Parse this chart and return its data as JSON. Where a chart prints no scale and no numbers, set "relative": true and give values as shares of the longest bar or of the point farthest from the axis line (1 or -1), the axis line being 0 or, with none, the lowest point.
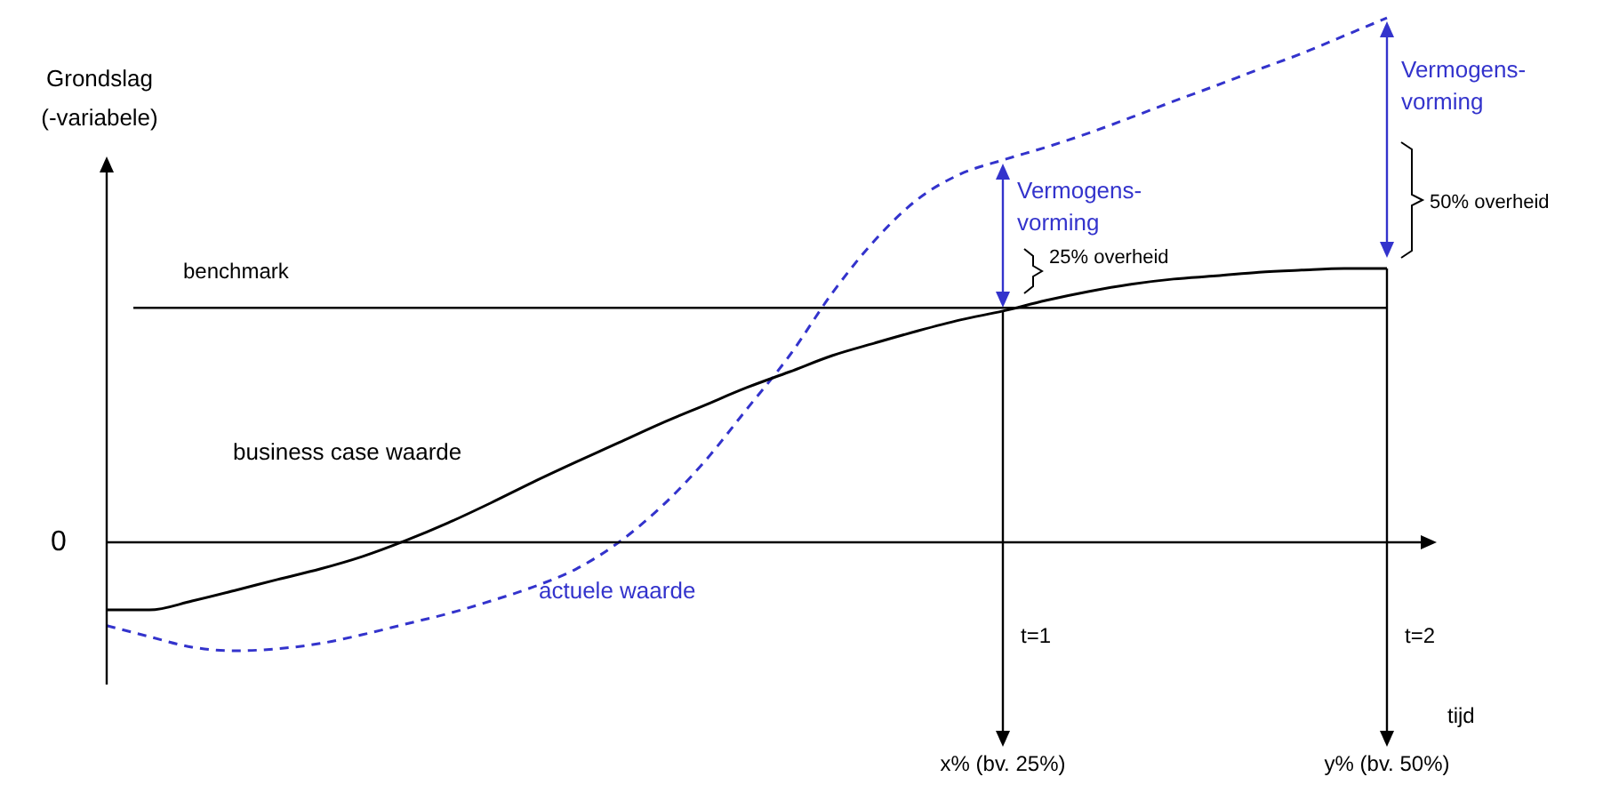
{
  "chart_data": {
    "type": "line",
    "relative": true,
    "ylabel": "Grondslag\n(-variabele)",
    "xlabel": "tijd",
    "legend": false,
    "marker": "none",
    "categories": [
      null,
      null,
      null,
      null,
      null,
      null,
      null,
      null,
      null,
      null,
      null,
      null,
      null,
      null,
      null,
      null,
      null,
      null,
      null,
      null,
      null,
      null,
      null,
      null,
      null,
      null,
      null,
      null,
      null,
      null,
      null
    ],
    "series": [
      {
        "name": "business case waarde",
        "color": "#000000",
        "line_style": "solid",
        "values": [
          -0.129,
          -0.129,
          -0.112,
          -0.092,
          -0.071,
          -0.051,
          -0.027,
          0.003,
          0.037,
          0.075,
          0.115,
          0.153,
          0.19,
          0.227,
          0.261,
          0.295,
          0.325,
          0.356,
          0.38,
          0.403,
          0.424,
          0.441,
          0.461,
          0.478,
          0.492,
          0.502,
          0.508,
          0.515,
          0.519,
          0.522,
          0.522
        ]
      },
      {
        "name": "actuele waarde",
        "color": "#3333cc",
        "line_style": "dashed",
        "values": [
          -0.159,
          -0.18,
          -0.2,
          -0.207,
          -0.203,
          -0.193,
          -0.176,
          -0.156,
          -0.136,
          -0.112,
          -0.085,
          -0.051,
          0,
          0.068,
          0.153,
          0.254,
          0.356,
          0.475,
          0.576,
          0.654,
          0.702,
          0.729,
          0.753,
          0.78,
          0.81,
          0.841,
          0.871,
          0.902,
          0.932,
          0.966,
          1
        ]
      }
    ],
    "ref_lines": [
      {
        "axis": "y",
        "value": 0.447,
        "label": "benchmark",
        "color": "#000000"
      }
    ],
    "annotations": [
      "0",
      "t=1",
      "t=2",
      "x% (bv. 25%)",
      "y% (bv. 50%)",
      "Vermogens-vorming",
      "Vermogens-vorming",
      "25% overheid",
      "50% overheid"
    ]
  }
}
